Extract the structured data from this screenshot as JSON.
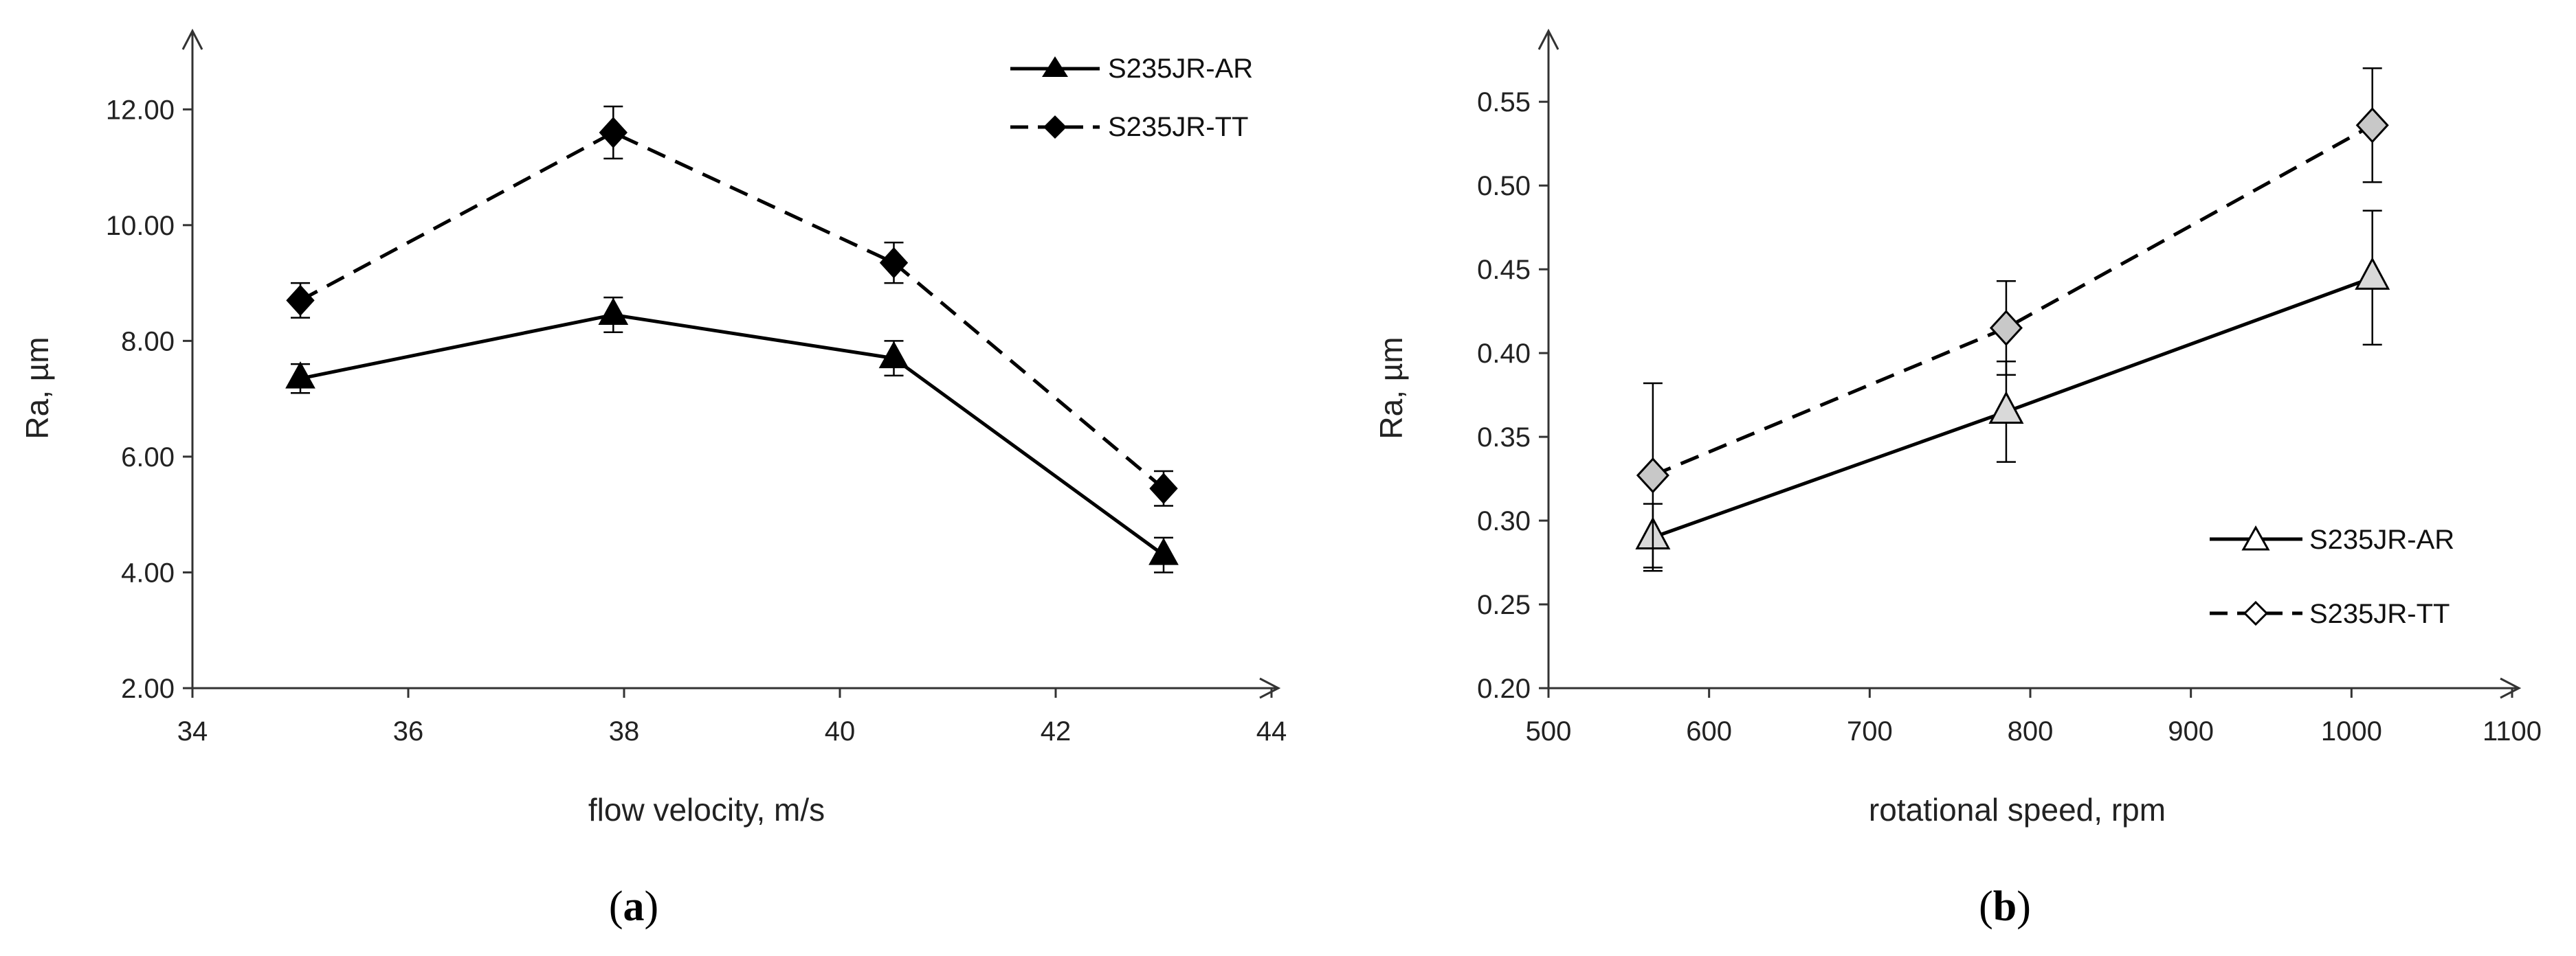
{
  "chart_data": [
    {
      "type": "line",
      "panel_label": "a",
      "xlabel": "flow velocity, m/s",
      "ylabel": "Ra, µm",
      "xlim": [
        34,
        44
      ],
      "ylim": [
        2,
        13
      ],
      "xticks": [
        34,
        36,
        38,
        40,
        42,
        44
      ],
      "xtick_labels": [
        "34",
        "36",
        "38",
        "40",
        "42",
        "44"
      ],
      "yticks": [
        2,
        4,
        6,
        8,
        10,
        12
      ],
      "ytick_labels": [
        "2.00",
        "4.00",
        "6.00",
        "8.00",
        "10.00",
        "12.00"
      ],
      "legend_position": "top-right",
      "series": [
        {
          "name": "S235JR-AR",
          "line": "solid",
          "marker": "filled-triangle",
          "x": [
            35,
            37.9,
            40.5,
            43
          ],
          "y": [
            7.35,
            8.45,
            7.7,
            4.3
          ],
          "err": [
            0.25,
            0.3,
            0.3,
            0.3
          ]
        },
        {
          "name": "S235JR-TT",
          "line": "dashed",
          "marker": "filled-diamond",
          "x": [
            35,
            37.9,
            40.5,
            43
          ],
          "y": [
            8.7,
            11.6,
            9.35,
            5.45
          ],
          "err": [
            0.3,
            0.45,
            0.35,
            0.3
          ]
        }
      ]
    },
    {
      "type": "line",
      "panel_label": "b",
      "xlabel": "rotational speed, rpm",
      "ylabel": "Ra, µm",
      "xlim": [
        500,
        1100
      ],
      "ylim": [
        0.2,
        0.58
      ],
      "xticks": [
        500,
        600,
        700,
        800,
        900,
        1000,
        1100
      ],
      "xtick_labels": [
        "500",
        "600",
        "700",
        "800",
        "900",
        "1000",
        "1100"
      ],
      "yticks": [
        0.2,
        0.25,
        0.3,
        0.35,
        0.4,
        0.45,
        0.5,
        0.55
      ],
      "ytick_labels": [
        "0.20",
        "0.25",
        "0.30",
        "0.35",
        "0.40",
        "0.45",
        "0.50",
        "0.55"
      ],
      "legend_position": "bottom-right",
      "series": [
        {
          "name": "S235JR-AR",
          "line": "solid",
          "marker": "open-triangle",
          "x": [
            565,
            785,
            1013
          ],
          "y": [
            0.29,
            0.365,
            0.445
          ],
          "err": [
            0.02,
            0.03,
            0.04
          ]
        },
        {
          "name": "S235JR-TT",
          "line": "dashed",
          "marker": "open-diamond",
          "x": [
            565,
            785,
            1013
          ],
          "y": [
            0.327,
            0.415,
            0.536
          ],
          "err": [
            0.055,
            0.028,
            0.034
          ]
        }
      ]
    }
  ]
}
